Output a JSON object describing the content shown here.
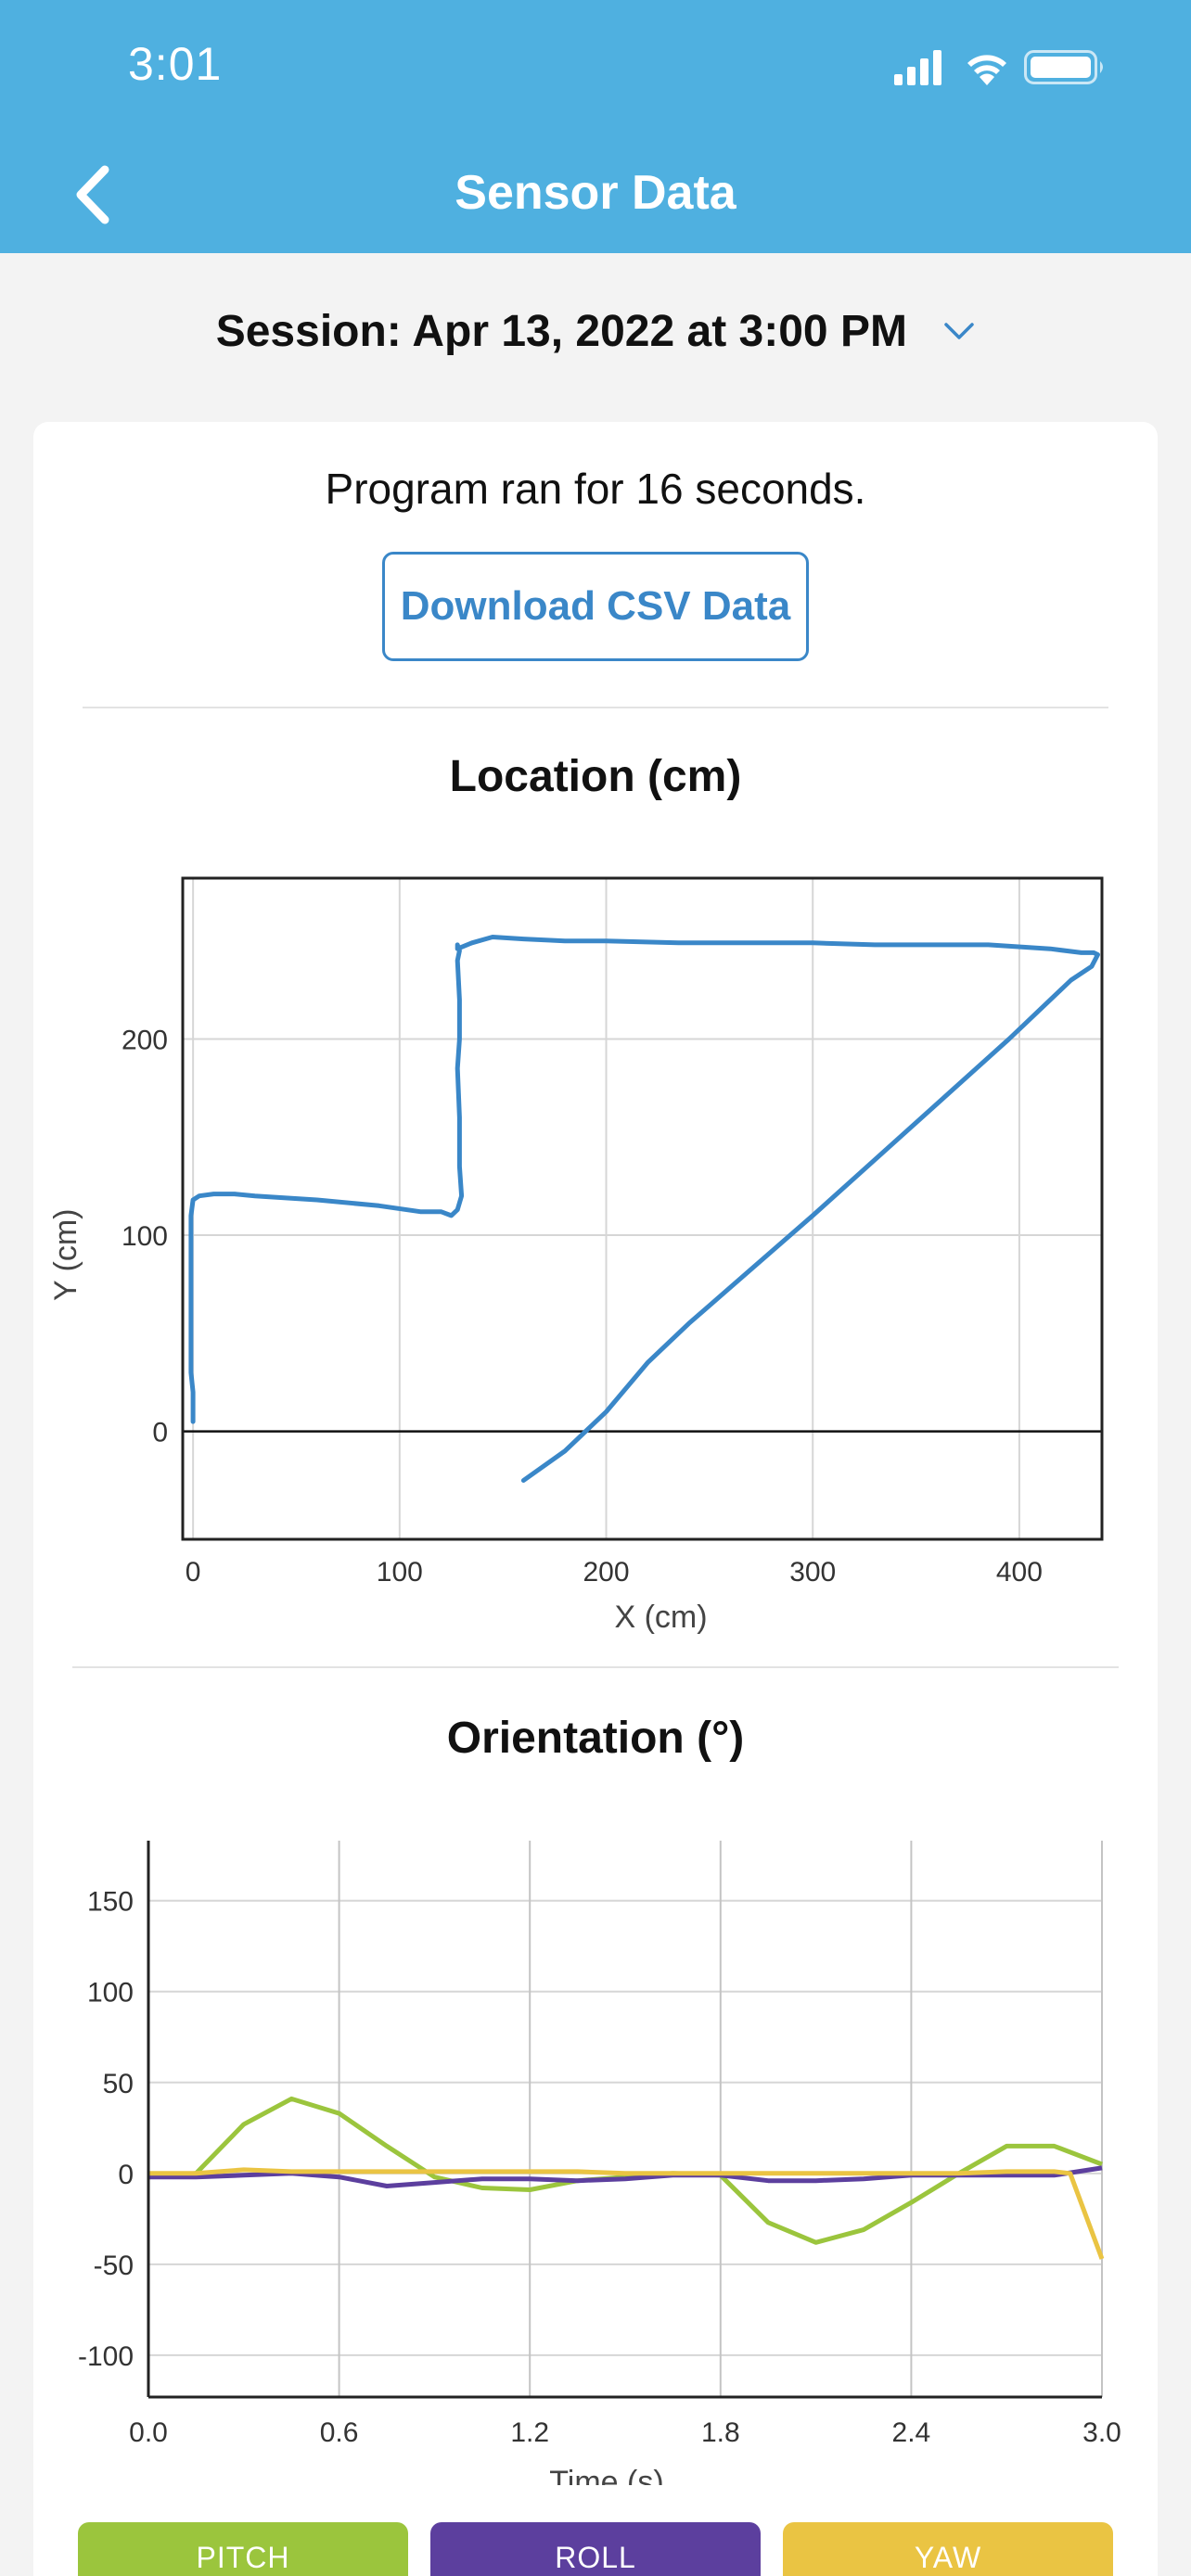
{
  "status_bar": {
    "time": "3:01"
  },
  "header": {
    "title": "Sensor Data"
  },
  "session": {
    "label": "Session: Apr 13, 2022 at 3:00 PM"
  },
  "summary": {
    "text": "Program ran for 16 seconds."
  },
  "download_button": {
    "label": "Download CSV Data"
  },
  "colors": {
    "header": "#4fb0e0",
    "accent": "#3a87c8",
    "pitch": "#9bc53d",
    "roll": "#5c3f9e",
    "yaw": "#eac443"
  },
  "chart_data": [
    {
      "type": "line",
      "title": "Location (cm)",
      "xlabel": "X (cm)",
      "ylabel": "Y (cm)",
      "xlim": [
        -5,
        440
      ],
      "ylim": [
        -55,
        282
      ],
      "xticks": [
        "0",
        "100",
        "200",
        "300",
        "400"
      ],
      "xtick_values": [
        0,
        100,
        200,
        300,
        400
      ],
      "yticks": [
        "0",
        "100",
        "200"
      ],
      "ytick_values": [
        0,
        100,
        200
      ],
      "grid": true,
      "series": [
        {
          "x": [
            0,
            0,
            -1,
            -1,
            -1,
            -1,
            0,
            3,
            10,
            20,
            30,
            60,
            90,
            110,
            120,
            125,
            128,
            130,
            129,
            129,
            128,
            129,
            129,
            128,
            129,
            128,
            128,
            135,
            145,
            160,
            180,
            200,
            235,
            300,
            330,
            385,
            415,
            430,
            436,
            438,
            435,
            425,
            415,
            395,
            300,
            240,
            220,
            200,
            180,
            160
          ],
          "y": [
            5,
            20,
            30,
            50,
            70,
            110,
            118,
            120,
            121,
            121,
            120,
            118,
            115,
            112,
            112,
            110,
            113,
            120,
            135,
            160,
            185,
            200,
            220,
            240,
            245,
            248,
            246,
            249,
            252,
            251,
            250,
            250,
            249,
            249,
            248,
            248,
            246,
            244,
            244,
            243,
            237,
            230,
            220,
            200,
            110,
            55,
            35,
            10,
            -10,
            -25
          ]
        }
      ]
    },
    {
      "type": "line",
      "title": "Orientation (°)",
      "xlabel": "Time (s)",
      "ylabel": "",
      "xlim": [
        0,
        3
      ],
      "ylim": [
        -123,
        183
      ],
      "xticks": [
        "0.0",
        "0.6",
        "1.2",
        "1.8",
        "2.4",
        "3.0"
      ],
      "xtick_values": [
        0,
        0.6,
        1.2,
        1.8,
        2.4,
        3.0
      ],
      "yticks": [
        "150",
        "100",
        "50",
        "0",
        "-50",
        "-100"
      ],
      "ytick_values": [
        150,
        100,
        50,
        0,
        -50,
        -100
      ],
      "grid": true,
      "legend": "bottom",
      "series": [
        {
          "name": "PITCH",
          "x": [
            0,
            0.15,
            0.3,
            0.45,
            0.6,
            0.75,
            0.9,
            1.05,
            1.2,
            1.35,
            1.5,
            1.65,
            1.8,
            1.95,
            2.1,
            2.25,
            2.4,
            2.55,
            2.7,
            2.85,
            3.0
          ],
          "y": [
            -2,
            0,
            27,
            41,
            33,
            15,
            -2,
            -8,
            -9,
            -4,
            -2,
            0,
            -1,
            -27,
            -38,
            -31,
            -16,
            0,
            15,
            15,
            5
          ]
        },
        {
          "name": "ROLL",
          "x": [
            0,
            0.15,
            0.3,
            0.45,
            0.6,
            0.75,
            0.9,
            1.05,
            1.2,
            1.35,
            1.5,
            1.65,
            1.8,
            1.95,
            2.1,
            2.25,
            2.4,
            2.55,
            2.7,
            2.85,
            3.0
          ],
          "y": [
            -2,
            -2,
            -1,
            0,
            -2,
            -7,
            -5,
            -3,
            -3,
            -4,
            -3,
            -1,
            -1,
            -4,
            -4,
            -3,
            -1,
            -1,
            -1,
            -1,
            3
          ]
        },
        {
          "name": "YAW",
          "x": [
            0,
            0.15,
            0.3,
            0.45,
            0.6,
            0.75,
            0.9,
            1.05,
            1.2,
            1.35,
            1.5,
            1.65,
            1.8,
            1.95,
            2.1,
            2.25,
            2.4,
            2.55,
            2.7,
            2.85,
            2.9,
            3.0
          ],
          "y": [
            0,
            0,
            2,
            1,
            1,
            1,
            1,
            1,
            1,
            1,
            0,
            0,
            0,
            0,
            0,
            0,
            0,
            0,
            1,
            1,
            0,
            -47
          ]
        }
      ]
    }
  ]
}
